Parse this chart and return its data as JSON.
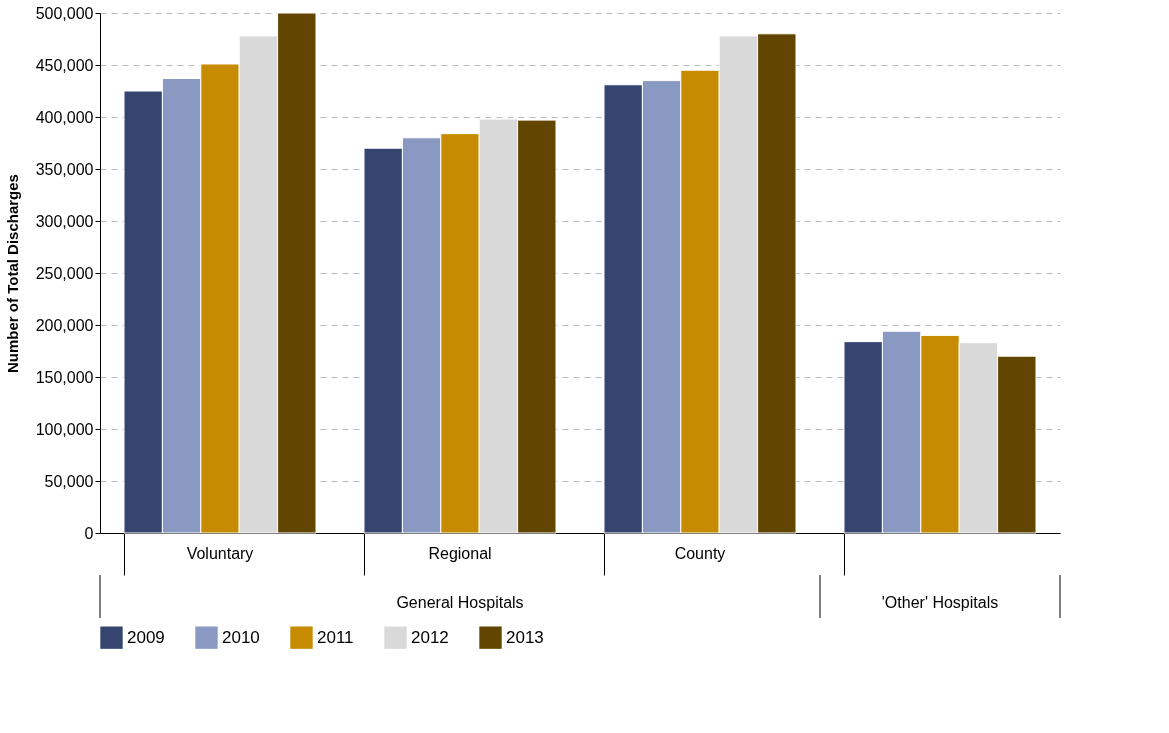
{
  "chart_data": {
    "type": "bar",
    "ylabel": "Number of Total Discharges",
    "categories": [
      "Voluntary",
      "Regional",
      "County",
      null
    ],
    "series": [
      {
        "name": "2009",
        "color": "#364470",
        "values": [
          425000,
          370000,
          431000,
          184000
        ]
      },
      {
        "name": "2010",
        "color": "#8a99c2",
        "values": [
          437000,
          380000,
          435000,
          194000
        ]
      },
      {
        "name": "2011",
        "color": "#c68b00",
        "values": [
          451000,
          384000,
          445000,
          190000
        ]
      },
      {
        "name": "2012",
        "color": "#d9d9d9",
        "values": [
          478000,
          398000,
          478000,
          183000
        ]
      },
      {
        "name": "2013",
        "color": "#624500",
        "values": [
          500000,
          397000,
          480000,
          170000
        ]
      }
    ],
    "ylim": [
      0,
      500000
    ],
    "yticks": [
      0,
      {
        "value": 50000,
        "label": "50,000"
      },
      {
        "value": 100000,
        "label": "100,000"
      },
      {
        "value": 150000,
        "label": "150,000"
      },
      {
        "value": 200000,
        "label": "200,000"
      },
      {
        "value": 250000,
        "label": "250,000"
      },
      {
        "value": 300000,
        "label": "300,000"
      },
      {
        "value": 350000,
        "label": "350,000"
      },
      {
        "value": 400000,
        "label": "400,000"
      },
      {
        "value": 450000,
        "label": "450,000"
      },
      {
        "value": 500000,
        "label": "500,000"
      }
    ],
    "grid": "y",
    "legend": "bottom",
    "annotations": [
      "General Hospitals",
      "'Other' Hospitals"
    ]
  }
}
